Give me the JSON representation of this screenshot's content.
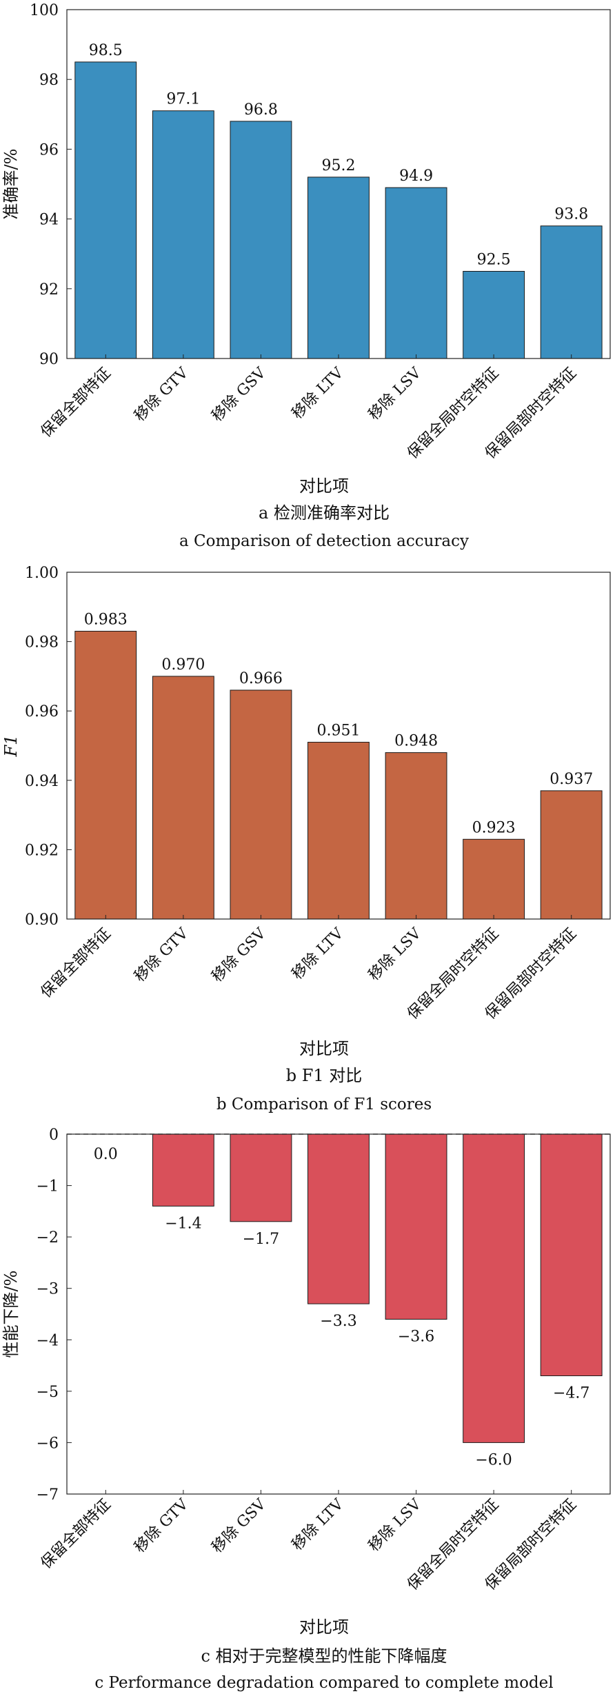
{
  "chart_data": [
    {
      "type": "bar",
      "color": "#3b8fbf",
      "ylabel": "准确率/%",
      "xlabel": "对比项",
      "caption_cn": "a 检测准确率对比",
      "caption_en": "a Comparison of detection accuracy",
      "categories": [
        "保留全部特征",
        "移除 GTV",
        "移除 GSV",
        "移除 LTV",
        "移除 LSV",
        "保留全局时空特征",
        "保留局部时空特征"
      ],
      "values": [
        98.5,
        97.1,
        96.8,
        95.2,
        94.9,
        92.5,
        93.8
      ],
      "value_labels": [
        "98.5",
        "97.1",
        "96.8",
        "95.2",
        "94.9",
        "92.5",
        "93.8"
      ],
      "ylim": [
        90,
        100
      ],
      "yticks": [
        90,
        92,
        94,
        96,
        98,
        100
      ],
      "ytick_labels": [
        "90",
        "92",
        "94",
        "96",
        "98",
        "100"
      ]
    },
    {
      "type": "bar",
      "color": "#c46643",
      "ylabel": "F1",
      "xlabel": "对比项",
      "caption_cn": "b F1 对比",
      "caption_en": "b Comparison of F1 scores",
      "categories": [
        "保留全部特征",
        "移除 GTV",
        "移除 GSV",
        "移除 LTV",
        "移除 LSV",
        "保留全局时空特征",
        "保留局部时空特征"
      ],
      "values": [
        0.983,
        0.97,
        0.966,
        0.951,
        0.948,
        0.923,
        0.937
      ],
      "value_labels": [
        "0.983",
        "0.970",
        "0.966",
        "0.951",
        "0.948",
        "0.923",
        "0.937"
      ],
      "ylim": [
        0.9,
        1.0
      ],
      "yticks": [
        0.9,
        0.92,
        0.94,
        0.96,
        0.98,
        1.0
      ],
      "ytick_labels": [
        "0.90",
        "0.92",
        "0.94",
        "0.96",
        "0.98",
        "1.00"
      ]
    },
    {
      "type": "bar",
      "color": "#d9505a",
      "ylabel": "性能下降/%",
      "xlabel": "对比项",
      "caption_cn": "c 相对于完整模型的性能下降幅度",
      "caption_en": "c Performance degradation compared to complete model",
      "categories": [
        "保留全部特征",
        "移除 GTV",
        "移除 GSV",
        "移除 LTV",
        "移除 LSV",
        "保留全局时空特征",
        "保留局部时空特征"
      ],
      "values": [
        0.0,
        -1.4,
        -1.7,
        -3.3,
        -3.6,
        -6.0,
        -4.7
      ],
      "value_labels": [
        "0.0",
        "−1.4",
        "−1.7",
        "−3.3",
        "−3.6",
        "−6.0",
        "−4.7"
      ],
      "ylim": [
        -7,
        0
      ],
      "yticks": [
        0,
        -1,
        -2,
        -3,
        -4,
        -5,
        -6,
        -7
      ],
      "ytick_labels": [
        "0",
        "−1",
        "−2",
        "−3",
        "−4",
        "−5",
        "−6",
        "−7"
      ],
      "zero_line": "dashed"
    }
  ]
}
